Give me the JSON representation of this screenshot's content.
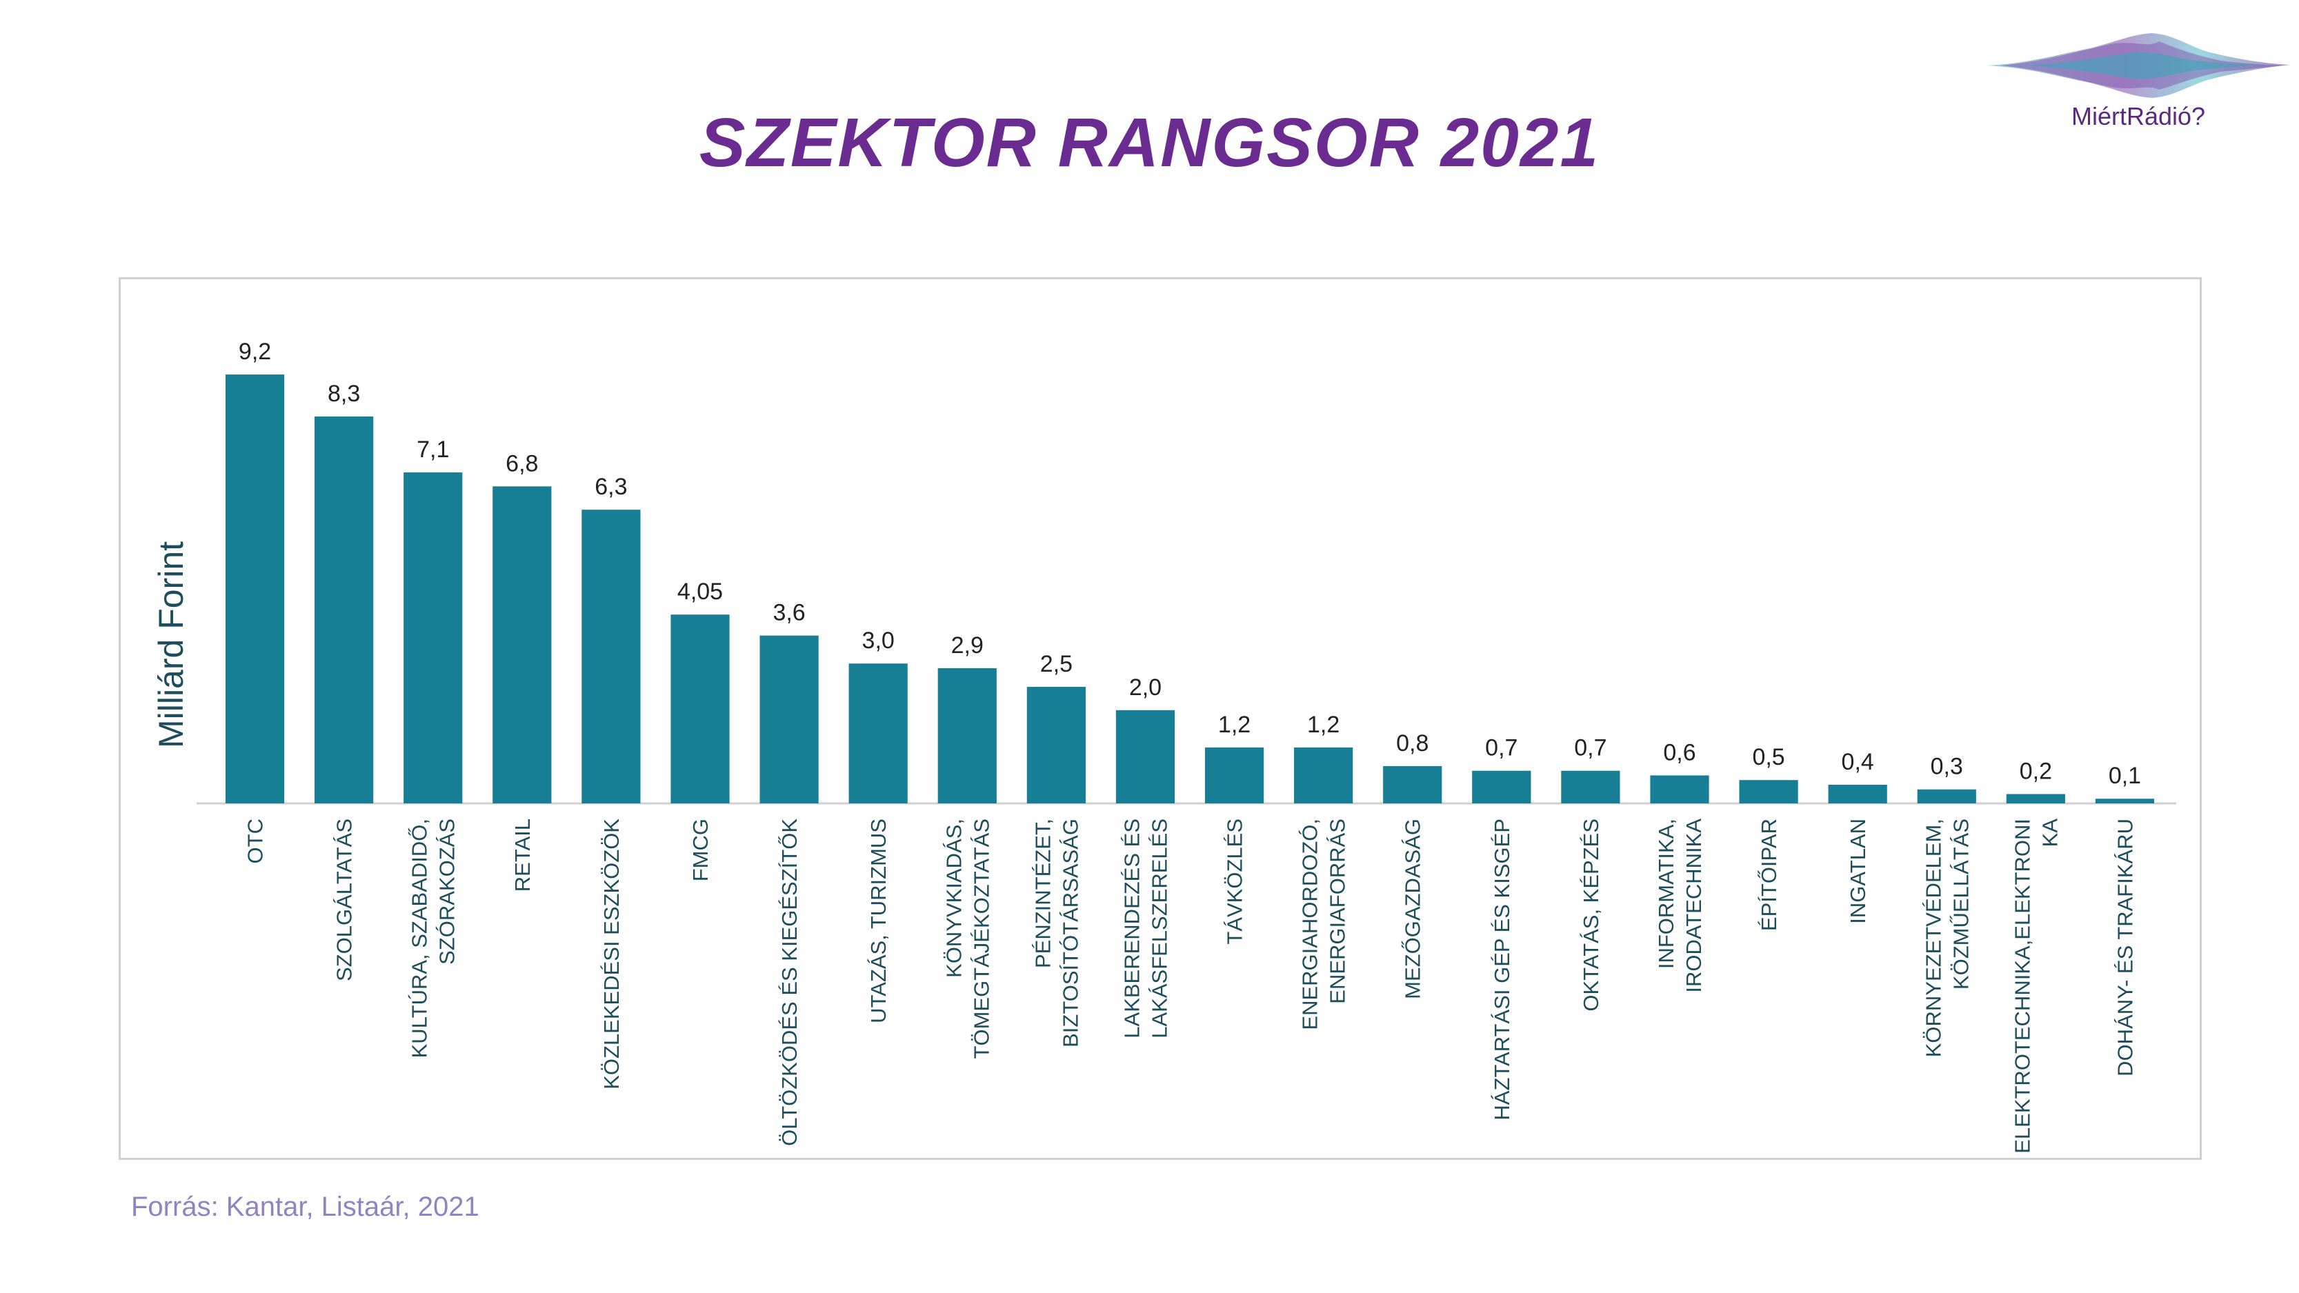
{
  "header": {
    "title": "SZEKTOR RANGSOR 2021",
    "logo_text": "MiértRádió?"
  },
  "footer": {
    "source": "Forrás: Kantar, Listaár, 2021"
  },
  "colors": {
    "bar": "#167f95",
    "title": "#6a2c91",
    "source": "#8f83c2"
  },
  "chart_data": {
    "type": "bar",
    "title": "SZEKTOR RANGSOR 2021",
    "xlabel": "",
    "ylabel": "Milliárd Forint",
    "ylim": [
      0,
      10
    ],
    "grid": false,
    "legend": "none",
    "categories": [
      [
        "OTC"
      ],
      [
        "SZOLGÁLTATÁS"
      ],
      [
        "KULTÚRA, SZABADIDŐ,",
        "SZÓRAKOZÁS"
      ],
      [
        "RETAIL"
      ],
      [
        "KÖZLEKEDÉSI ESZKÖZÖK"
      ],
      [
        "FMCG"
      ],
      [
        "ÖLTÖZKÖDÉS ÉS KIEGÉSZÍTŐK"
      ],
      [
        "UTAZÁS, TURIZMUS"
      ],
      [
        "KÖNYVKIADÁS,",
        "TÖMEGTÁJÉKOZTATÁS"
      ],
      [
        "PÉNZINTÉZET,",
        "BIZTOSÍTÓTÁRSASÁG"
      ],
      [
        "LAKBERENDEZÉS ÉS",
        "LAKÁSFELSZERELÉS"
      ],
      [
        "TÁVKÖZLÉS"
      ],
      [
        "ENERGIAHORDOZÓ,",
        "ENERGIAFORRÁS"
      ],
      [
        "MEZŐGAZDASÁG"
      ],
      [
        "HÁZTARTÁSI GÉP ÉS KISGÉP"
      ],
      [
        "OKTATÁS, KÉPZÉS"
      ],
      [
        "INFORMATIKA,",
        "IRODATECHNIKA"
      ],
      [
        "ÉPÍTŐIPAR"
      ],
      [
        "INGATLAN"
      ],
      [
        "KÖRNYEZETVÉDELEM,",
        "KÖZMŰELLÁTÁS"
      ],
      [
        "ELEKTROTECHNIKA,ELEKTRONI",
        "KA"
      ],
      [
        "DOHÁNY- ÉS TRAFIKÁRU"
      ]
    ],
    "values": [
      9.2,
      8.3,
      7.1,
      6.8,
      6.3,
      4.05,
      3.6,
      3.0,
      2.9,
      2.5,
      2.0,
      1.2,
      1.2,
      0.8,
      0.7,
      0.7,
      0.6,
      0.5,
      0.4,
      0.3,
      0.2,
      0.1
    ],
    "value_labels": [
      "9,2",
      "8,3",
      "7,1",
      "6,8",
      "6,3",
      "4,05",
      "3,6",
      "3,0",
      "2,9",
      "2,5",
      "2,0",
      "1,2",
      "1,2",
      "0,8",
      "0,7",
      "0,7",
      "0,6",
      "0,5",
      "0,4",
      "0,3",
      "0,2",
      "0,1"
    ]
  }
}
